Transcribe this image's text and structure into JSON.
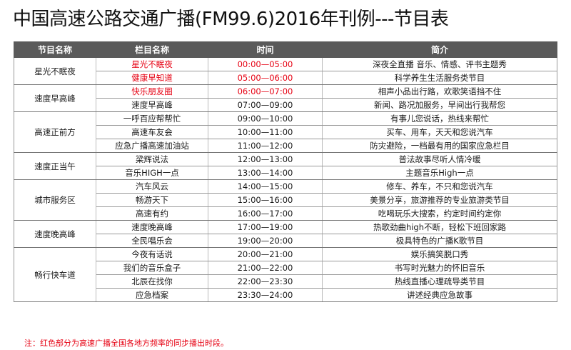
{
  "title": "中国高速公路交通广播(FM99.6)2016年刊例---节目表",
  "headers": [
    "节目名称",
    "栏目名称",
    "时间",
    "简介"
  ],
  "groups": [
    {
      "program": "星光不眠夜",
      "rows": [
        {
          "column": "星光不眠夜",
          "time": "00:00—05:00",
          "desc": "深夜全直播 音乐、情感、评书主题秀",
          "red": true
        },
        {
          "column": "健康早知道",
          "time": "05:00—06:00",
          "desc": "科学养生生活服务类节目",
          "red": true
        }
      ]
    },
    {
      "program": "速度早高峰",
      "rows": [
        {
          "column": "快乐朋友圈",
          "time": "06:00—07:00",
          "desc": "相声小品出行路，欢歌笑语挡不住",
          "red": true
        },
        {
          "column": "速度早高峰",
          "time": "07:00—09:00",
          "desc": "新闻、路况加服务，早间出行我帮您",
          "red": false
        }
      ]
    },
    {
      "program": "高速正前方",
      "rows": [
        {
          "column": "一呼百应帮帮忙",
          "time": "09:00—10:00",
          "desc": "有事儿您说话，热线来帮忙",
          "red": false
        },
        {
          "column": "高速车友会",
          "time": "10:00—11:00",
          "desc": "买车、用车，天天和您说汽车",
          "red": false
        },
        {
          "column": "应急广播高速加油站",
          "time": "11:00—12:00",
          "desc": "防灾避险，一档最有用的国家应急栏目",
          "red": false
        }
      ]
    },
    {
      "program": "速度正当午",
      "rows": [
        {
          "column": "梁辉说法",
          "time": "12:00—13:00",
          "desc": "普法故事尽听人情冷暖",
          "red": false
        },
        {
          "column": "音乐HIGH一点",
          "time": "13:00—14:00",
          "desc": "主题音乐High一点",
          "red": false
        }
      ]
    },
    {
      "program": "城市服务区",
      "rows": [
        {
          "column": "汽车风云",
          "time": "14:00—15:00",
          "desc": "修车、养车，不只和您说汽车",
          "red": false
        },
        {
          "column": "畅游天下",
          "time": "15:00—16:00",
          "desc": "美景分享，旅游推荐的专业旅游类节目",
          "red": false
        },
        {
          "column": "高速有约",
          "time": "16:00—17:00",
          "desc": "吃喝玩乐大搜索，约定时间约定你",
          "red": false
        }
      ]
    },
    {
      "program": "速度晚高峰",
      "rows": [
        {
          "column": "速度晚高峰",
          "time": "17:00—19:00",
          "desc": "热歌劲曲high不断，轻松下班回家路",
          "red": false
        },
        {
          "column": "全民唱乐会",
          "time": "19:00—20:00",
          "desc": "极具特色的广播K歌节目",
          "red": false
        }
      ]
    },
    {
      "program": "畅行快车道",
      "rows": [
        {
          "column": "今夜有话说",
          "time": "20:00—21:00",
          "desc": "娱乐搞笑脱口秀",
          "red": false
        },
        {
          "column": "我们的音乐盒子",
          "time": "21:00—22:00",
          "desc": "书写时光魅力的怀旧音乐",
          "red": false
        },
        {
          "column": "北辰在找你",
          "time": "22:00—23:30",
          "desc": "热线直播心理疏导类节目",
          "red": false
        },
        {
          "column": "应急档案",
          "time": "23:30—24:00",
          "desc": "讲述经典应急故事",
          "red": false
        }
      ]
    }
  ],
  "note": "注：红色部分为高速广播全国各地方频率的同步播出时段。"
}
